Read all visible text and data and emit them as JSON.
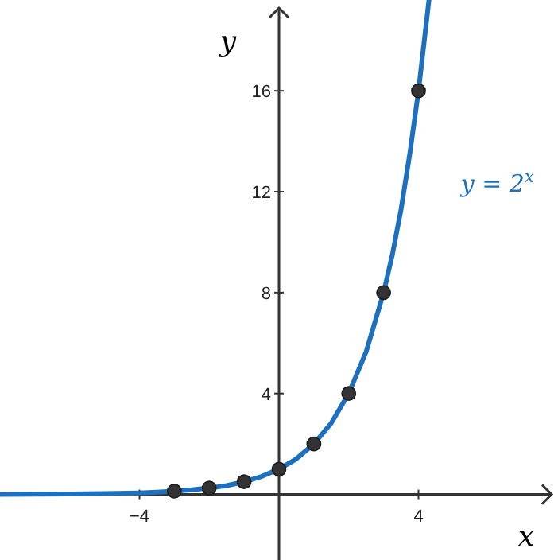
{
  "chart_data": {
    "type": "line",
    "xlabel": "x",
    "ylabel": "y",
    "xlim": [
      -8,
      8
    ],
    "ylim": [
      -2.6,
      19.6
    ],
    "xticks": [
      -4,
      4
    ],
    "yticks": [
      4,
      8,
      12,
      16
    ],
    "grid": false,
    "series": [
      {
        "name": "y = 2$^{x}$",
        "color": "#1c70be",
        "marker": "none",
        "x": [
          -8,
          -7,
          -6,
          -5,
          -4,
          -3.5,
          -3,
          -2.5,
          -2,
          -1.5,
          -1,
          -0.5,
          0,
          0.5,
          1,
          1.5,
          2,
          2.5,
          3,
          3.25,
          3.5,
          3.75,
          4,
          4.25,
          4.3
        ],
        "values": [
          0,
          0.01,
          0.02,
          0.03,
          0.06,
          0.09,
          0.13,
          0.18,
          0.25,
          0.35,
          0.5,
          0.71,
          1,
          1.41,
          2,
          2.83,
          4,
          5.66,
          8,
          9.5,
          11.3,
          13.5,
          16,
          19,
          19.6
        ]
      },
      {
        "color": "#333333",
        "type": "scatter",
        "marker": "circle",
        "x": [
          -3,
          -2,
          -1,
          0,
          1,
          2,
          3,
          4
        ],
        "values": [
          0.13,
          0.25,
          0.5,
          1,
          2,
          4,
          8,
          16
        ]
      }
    ]
  }
}
